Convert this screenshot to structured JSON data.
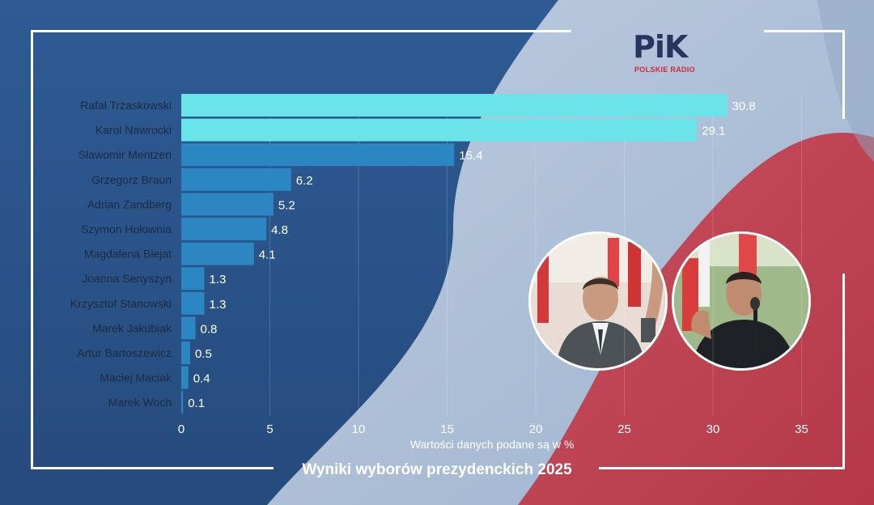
{
  "brand": {
    "logo_text": "PiK",
    "logo_subtitle": "POLSKIE RADIO",
    "logo_icon": "polskie-radio-pik-logo"
  },
  "footer": {
    "title": "Wyniki wyborów prezydenckich 2025"
  },
  "photos": [
    {
      "name": "candidate-photo-trzaskowski",
      "icon": "portrait-photo"
    },
    {
      "name": "candidate-photo-nawrocki",
      "icon": "portrait-photo"
    }
  ],
  "colors": {
    "leader_bar": "#6ae4e9",
    "other_bar": "#2b86c1",
    "label_text": "#1c2b40",
    "value_text": "#ffffff",
    "axis_text": "#ffffff"
  },
  "chart_data": {
    "type": "bar",
    "orientation": "horizontal",
    "categories": [
      "Rafał Trzaskowski",
      "Karol Nawrocki",
      "Sławomir Mentzen",
      "Grzegorz Braun",
      "Adrian Zandberg",
      "Szymon Hołownia",
      "Magdalena Biejat",
      "Joanna Senyszyn",
      "Krzysztof Stanowski",
      "Marek Jakubiak",
      "Artur Bartoszewicz",
      "Maciej Maciak",
      "Marek Woch"
    ],
    "values": [
      30.8,
      29.1,
      15.4,
      6.2,
      5.2,
      4.8,
      4.1,
      1.3,
      1.3,
      0.8,
      0.5,
      0.4,
      0.1
    ],
    "value_labels": [
      "30.8",
      "29.1",
      "15.4",
      "6.2",
      "5.2",
      "4.8",
      "4.1",
      "1.3",
      "1.3",
      "0.8",
      "0.5",
      "0.4",
      "0.1"
    ],
    "xlabel": "Wartości danych podane są w %",
    "xlim": [
      0,
      35
    ],
    "xticks": [
      "0",
      "5",
      "10",
      "15",
      "20",
      "25",
      "30",
      "35"
    ],
    "grid": true,
    "highlighted_categories": [
      "Rafał Trzaskowski",
      "Karol Nawrocki"
    ]
  }
}
